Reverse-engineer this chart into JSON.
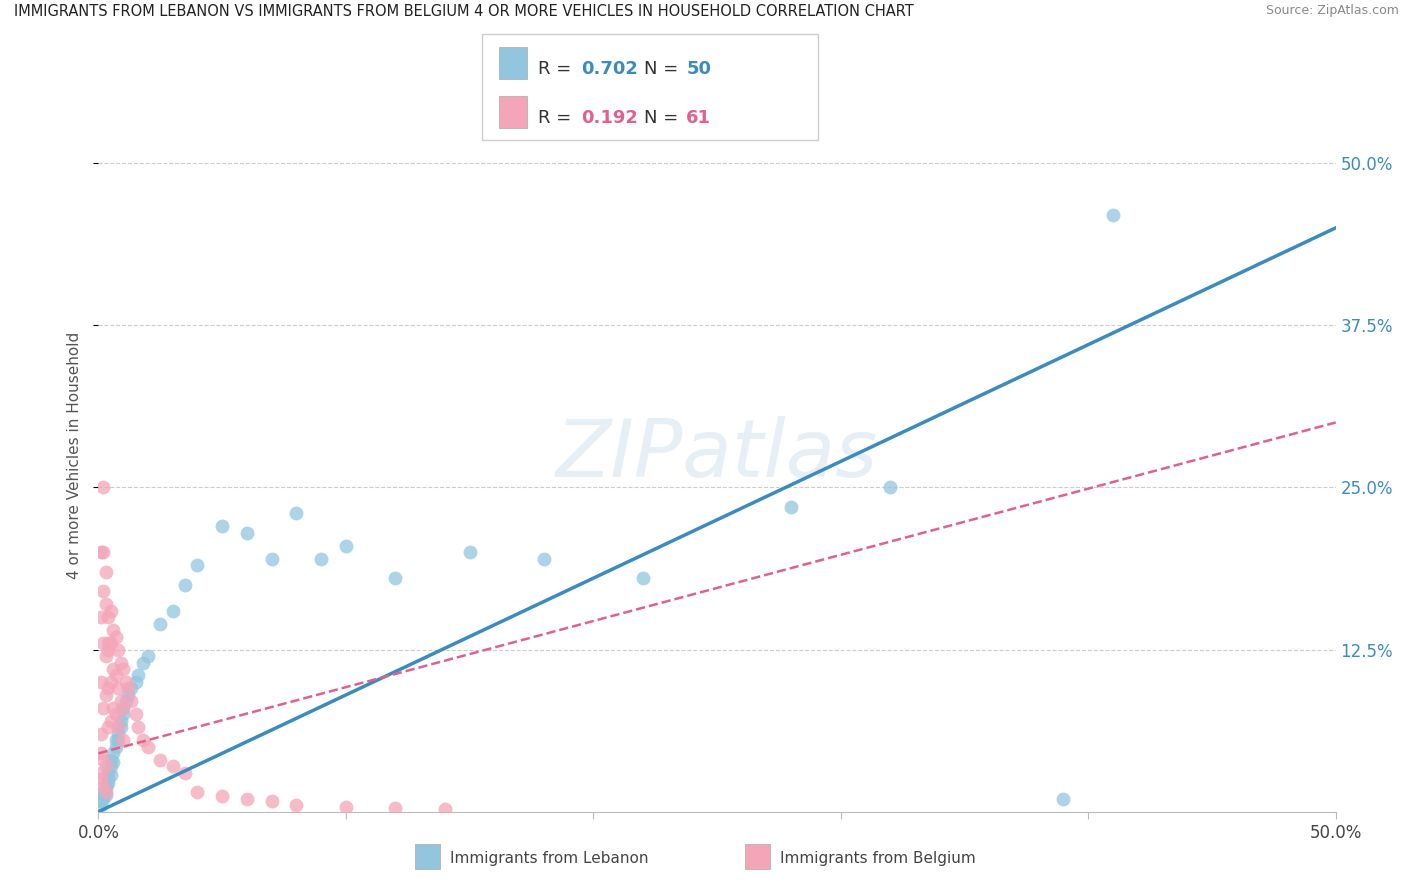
{
  "title": "IMMIGRANTS FROM LEBANON VS IMMIGRANTS FROM BELGIUM 4 OR MORE VEHICLES IN HOUSEHOLD CORRELATION CHART",
  "source": "Source: ZipAtlas.com",
  "ylabel": "4 or more Vehicles in Household",
  "color_blue": "#92c5de",
  "color_pink": "#f4a5b8",
  "color_blue_line": "#3b8bbf",
  "color_pink_line": "#e06090",
  "background": "#ffffff",
  "grid_color": "#cccccc",
  "xlim": [
    0.0,
    0.5
  ],
  "ylim": [
    0.0,
    0.55
  ],
  "ytick_vals": [
    0.125,
    0.25,
    0.375,
    0.5
  ],
  "ytick_labels": [
    "12.5%",
    "25.0%",
    "37.5%",
    "50.0%"
  ],
  "watermark": "ZIPatlas",
  "leb_r": "0.702",
  "leb_n": "50",
  "bel_r": "0.192",
  "bel_n": "61",
  "leb_x": [
    0.001,
    0.001,
    0.001,
    0.002,
    0.002,
    0.002,
    0.003,
    0.003,
    0.003,
    0.004,
    0.004,
    0.004,
    0.005,
    0.005,
    0.005,
    0.006,
    0.006,
    0.007,
    0.007,
    0.008,
    0.008,
    0.009,
    0.009,
    0.01,
    0.01,
    0.011,
    0.012,
    0.013,
    0.015,
    0.016,
    0.018,
    0.02,
    0.025,
    0.03,
    0.035,
    0.04,
    0.05,
    0.06,
    0.07,
    0.08,
    0.09,
    0.1,
    0.12,
    0.15,
    0.18,
    0.22,
    0.28,
    0.32,
    0.39,
    0.41
  ],
  "leb_y": [
    0.01,
    0.005,
    0.008,
    0.012,
    0.015,
    0.01,
    0.02,
    0.018,
    0.013,
    0.025,
    0.022,
    0.03,
    0.035,
    0.028,
    0.04,
    0.045,
    0.038,
    0.05,
    0.055,
    0.06,
    0.055,
    0.065,
    0.07,
    0.075,
    0.08,
    0.085,
    0.09,
    0.095,
    0.1,
    0.105,
    0.115,
    0.12,
    0.145,
    0.155,
    0.175,
    0.19,
    0.22,
    0.215,
    0.195,
    0.23,
    0.195,
    0.205,
    0.18,
    0.2,
    0.195,
    0.18,
    0.235,
    0.25,
    0.01,
    0.46
  ],
  "bel_x": [
    0.001,
    0.001,
    0.001,
    0.001,
    0.001,
    0.002,
    0.002,
    0.002,
    0.002,
    0.002,
    0.003,
    0.003,
    0.003,
    0.003,
    0.004,
    0.004,
    0.004,
    0.004,
    0.005,
    0.005,
    0.005,
    0.005,
    0.006,
    0.006,
    0.006,
    0.007,
    0.007,
    0.007,
    0.008,
    0.008,
    0.008,
    0.009,
    0.009,
    0.01,
    0.01,
    0.01,
    0.011,
    0.012,
    0.013,
    0.015,
    0.016,
    0.018,
    0.02,
    0.025,
    0.03,
    0.035,
    0.04,
    0.05,
    0.06,
    0.07,
    0.08,
    0.1,
    0.12,
    0.14,
    0.001,
    0.001,
    0.002,
    0.002,
    0.003,
    0.003,
    0.004
  ],
  "bel_y": [
    0.2,
    0.15,
    0.1,
    0.06,
    0.03,
    0.25,
    0.2,
    0.17,
    0.13,
    0.08,
    0.185,
    0.16,
    0.12,
    0.09,
    0.15,
    0.125,
    0.095,
    0.065,
    0.155,
    0.13,
    0.1,
    0.07,
    0.14,
    0.11,
    0.08,
    0.135,
    0.105,
    0.075,
    0.125,
    0.095,
    0.065,
    0.115,
    0.085,
    0.11,
    0.08,
    0.055,
    0.1,
    0.095,
    0.085,
    0.075,
    0.065,
    0.055,
    0.05,
    0.04,
    0.035,
    0.03,
    0.015,
    0.012,
    0.01,
    0.008,
    0.005,
    0.004,
    0.003,
    0.002,
    0.045,
    0.025,
    0.04,
    0.02,
    0.035,
    0.015,
    0.13
  ],
  "blue_line_x": [
    0.0,
    0.5
  ],
  "blue_line_y": [
    0.0,
    0.45
  ],
  "pink_line_x": [
    0.0,
    0.5
  ],
  "pink_line_y": [
    0.045,
    0.3
  ]
}
